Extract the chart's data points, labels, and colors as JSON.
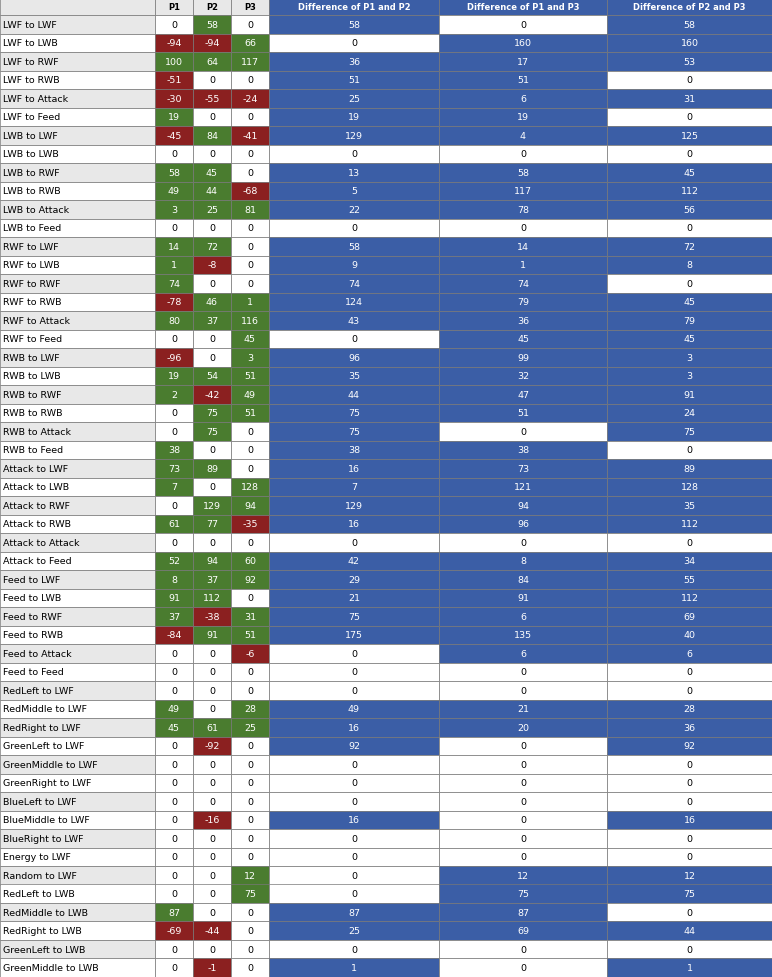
{
  "headers": [
    "",
    "P1",
    "P2",
    "P3",
    "Difference of P1 and P2",
    "Difference of P1 and P3",
    "Difference of P2 and P3"
  ],
  "rows": [
    {
      "label": "LWF to LWF",
      "p1": 0,
      "p2": 58,
      "p3": 0,
      "d12": 58,
      "d13": 0,
      "d23": 58
    },
    {
      "label": "LWF to LWB",
      "p1": -94,
      "p2": -94,
      "p3": 66,
      "d12": 0,
      "d13": 160,
      "d23": 160
    },
    {
      "label": "LWF to RWF",
      "p1": 100,
      "p2": 64,
      "p3": 117,
      "d12": 36,
      "d13": 17,
      "d23": 53
    },
    {
      "label": "LWF to RWB",
      "p1": -51,
      "p2": 0,
      "p3": 0,
      "d12": 51,
      "d13": 51,
      "d23": 0
    },
    {
      "label": "LWF to Attack",
      "p1": -30,
      "p2": -55,
      "p3": -24,
      "d12": 25,
      "d13": 6,
      "d23": 31
    },
    {
      "label": "LWF to Feed",
      "p1": 19,
      "p2": 0,
      "p3": 0,
      "d12": 19,
      "d13": 19,
      "d23": 0
    },
    {
      "label": "LWB to LWF",
      "p1": -45,
      "p2": 84,
      "p3": -41,
      "d12": 129,
      "d13": 4,
      "d23": 125
    },
    {
      "label": "LWB to LWB",
      "p1": 0,
      "p2": 0,
      "p3": 0,
      "d12": 0,
      "d13": 0,
      "d23": 0
    },
    {
      "label": "LWB to RWF",
      "p1": 58,
      "p2": 45,
      "p3": 0,
      "d12": 13,
      "d13": 58,
      "d23": 45
    },
    {
      "label": "LWB to RWB",
      "p1": 49,
      "p2": 44,
      "p3": -68,
      "d12": 5,
      "d13": 117,
      "d23": 112
    },
    {
      "label": "LWB to Attack",
      "p1": 3,
      "p2": 25,
      "p3": 81,
      "d12": 22,
      "d13": 78,
      "d23": 56
    },
    {
      "label": "LWB to Feed",
      "p1": 0,
      "p2": 0,
      "p3": 0,
      "d12": 0,
      "d13": 0,
      "d23": 0
    },
    {
      "label": "RWF to LWF",
      "p1": 14,
      "p2": 72,
      "p3": 0,
      "d12": 58,
      "d13": 14,
      "d23": 72
    },
    {
      "label": "RWF to LWB",
      "p1": 1,
      "p2": -8,
      "p3": 0,
      "d12": 9,
      "d13": 1,
      "d23": 8
    },
    {
      "label": "RWF to RWF",
      "p1": 74,
      "p2": 0,
      "p3": 0,
      "d12": 74,
      "d13": 74,
      "d23": 0
    },
    {
      "label": "RWF to RWB",
      "p1": -78,
      "p2": 46,
      "p3": 1,
      "d12": 124,
      "d13": 79,
      "d23": 45
    },
    {
      "label": "RWF to Attack",
      "p1": 80,
      "p2": 37,
      "p3": 116,
      "d12": 43,
      "d13": 36,
      "d23": 79
    },
    {
      "label": "RWF to Feed",
      "p1": 0,
      "p2": 0,
      "p3": 45,
      "d12": 0,
      "d13": 45,
      "d23": 45
    },
    {
      "label": "RWB to LWF",
      "p1": -96,
      "p2": 0,
      "p3": 3,
      "d12": 96,
      "d13": 99,
      "d23": 3
    },
    {
      "label": "RWB to LWB",
      "p1": 19,
      "p2": 54,
      "p3": 51,
      "d12": 35,
      "d13": 32,
      "d23": 3
    },
    {
      "label": "RWB to RWF",
      "p1": 2,
      "p2": -42,
      "p3": 49,
      "d12": 44,
      "d13": 47,
      "d23": 91
    },
    {
      "label": "RWB to RWB",
      "p1": 0,
      "p2": 75,
      "p3": 51,
      "d12": 75,
      "d13": 51,
      "d23": 24
    },
    {
      "label": "RWB to Attack",
      "p1": 0,
      "p2": 75,
      "p3": 0,
      "d12": 75,
      "d13": 0,
      "d23": 75
    },
    {
      "label": "RWB to Feed",
      "p1": 38,
      "p2": 0,
      "p3": 0,
      "d12": 38,
      "d13": 38,
      "d23": 0
    },
    {
      "label": "Attack to LWF",
      "p1": 73,
      "p2": 89,
      "p3": 0,
      "d12": 16,
      "d13": 73,
      "d23": 89
    },
    {
      "label": "Attack to LWB",
      "p1": 7,
      "p2": 0,
      "p3": 128,
      "d12": 7,
      "d13": 121,
      "d23": 128
    },
    {
      "label": "Attack to RWF",
      "p1": 0,
      "p2": 129,
      "p3": 94,
      "d12": 129,
      "d13": 94,
      "d23": 35
    },
    {
      "label": "Attack to RWB",
      "p1": 61,
      "p2": 77,
      "p3": -35,
      "d12": 16,
      "d13": 96,
      "d23": 112
    },
    {
      "label": "Attack to Attack",
      "p1": 0,
      "p2": 0,
      "p3": 0,
      "d12": 0,
      "d13": 0,
      "d23": 0
    },
    {
      "label": "Attack to Feed",
      "p1": 52,
      "p2": 94,
      "p3": 60,
      "d12": 42,
      "d13": 8,
      "d23": 34
    },
    {
      "label": "Feed to LWF",
      "p1": 8,
      "p2": 37,
      "p3": 92,
      "d12": 29,
      "d13": 84,
      "d23": 55
    },
    {
      "label": "Feed to LWB",
      "p1": 91,
      "p2": 112,
      "p3": 0,
      "d12": 21,
      "d13": 91,
      "d23": 112
    },
    {
      "label": "Feed to RWF",
      "p1": 37,
      "p2": -38,
      "p3": 31,
      "d12": 75,
      "d13": 6,
      "d23": 69
    },
    {
      "label": "Feed to RWB",
      "p1": -84,
      "p2": 91,
      "p3": 51,
      "d12": 175,
      "d13": 135,
      "d23": 40
    },
    {
      "label": "Feed to Attack",
      "p1": 0,
      "p2": 0,
      "p3": -6,
      "d12": 0,
      "d13": 6,
      "d23": 6
    },
    {
      "label": "Feed to Feed",
      "p1": 0,
      "p2": 0,
      "p3": 0,
      "d12": 0,
      "d13": 0,
      "d23": 0
    },
    {
      "label": "RedLeft to LWF",
      "p1": 0,
      "p2": 0,
      "p3": 0,
      "d12": 0,
      "d13": 0,
      "d23": 0
    },
    {
      "label": "RedMiddle to LWF",
      "p1": 49,
      "p2": 0,
      "p3": 28,
      "d12": 49,
      "d13": 21,
      "d23": 28
    },
    {
      "label": "RedRight to LWF",
      "p1": 45,
      "p2": 61,
      "p3": 25,
      "d12": 16,
      "d13": 20,
      "d23": 36
    },
    {
      "label": "GreenLeft to LWF",
      "p1": 0,
      "p2": -92,
      "p3": 0,
      "d12": 92,
      "d13": 0,
      "d23": 92
    },
    {
      "label": "GreenMiddle to LWF",
      "p1": 0,
      "p2": 0,
      "p3": 0,
      "d12": 0,
      "d13": 0,
      "d23": 0
    },
    {
      "label": "GreenRight to LWF",
      "p1": 0,
      "p2": 0,
      "p3": 0,
      "d12": 0,
      "d13": 0,
      "d23": 0
    },
    {
      "label": "BlueLeft to LWF",
      "p1": 0,
      "p2": 0,
      "p3": 0,
      "d12": 0,
      "d13": 0,
      "d23": 0
    },
    {
      "label": "BlueMiddle to LWF",
      "p1": 0,
      "p2": -16,
      "p3": 0,
      "d12": 16,
      "d13": 0,
      "d23": 16
    },
    {
      "label": "BlueRight to LWF",
      "p1": 0,
      "p2": 0,
      "p3": 0,
      "d12": 0,
      "d13": 0,
      "d23": 0
    },
    {
      "label": "Energy to LWF",
      "p1": 0,
      "p2": 0,
      "p3": 0,
      "d12": 0,
      "d13": 0,
      "d23": 0
    },
    {
      "label": "Random to LWF",
      "p1": 0,
      "p2": 0,
      "p3": 12,
      "d12": 0,
      "d13": 12,
      "d23": 12
    },
    {
      "label": "RedLeft to LWB",
      "p1": 0,
      "p2": 0,
      "p3": 75,
      "d12": 0,
      "d13": 75,
      "d23": 75
    },
    {
      "label": "RedMiddle to LWB",
      "p1": 87,
      "p2": 0,
      "p3": 0,
      "d12": 87,
      "d13": 87,
      "d23": 0
    },
    {
      "label": "RedRight to LWB",
      "p1": -69,
      "p2": -44,
      "p3": 0,
      "d12": 25,
      "d13": 69,
      "d23": 44
    },
    {
      "label": "GreenLeft to LWB",
      "p1": 0,
      "p2": 0,
      "p3": 0,
      "d12": 0,
      "d13": 0,
      "d23": 0
    },
    {
      "label": "GreenMiddle to LWB",
      "p1": 0,
      "p2": -1,
      "p3": 0,
      "d12": 1,
      "d13": 0,
      "d23": 1
    }
  ],
  "color_positive": "#4a7c2f",
  "color_negative": "#8b2020",
  "color_zero_white": "#ffffff",
  "color_blue_bg": "#3b5ea6",
  "color_white_text": "#ffffff",
  "color_black_text": "#000000",
  "color_label_bg_even": "#e8e8e8",
  "color_label_bg_odd": "#ffffff",
  "fig_width": 7.72,
  "fig_height": 9.78,
  "dpi": 100
}
